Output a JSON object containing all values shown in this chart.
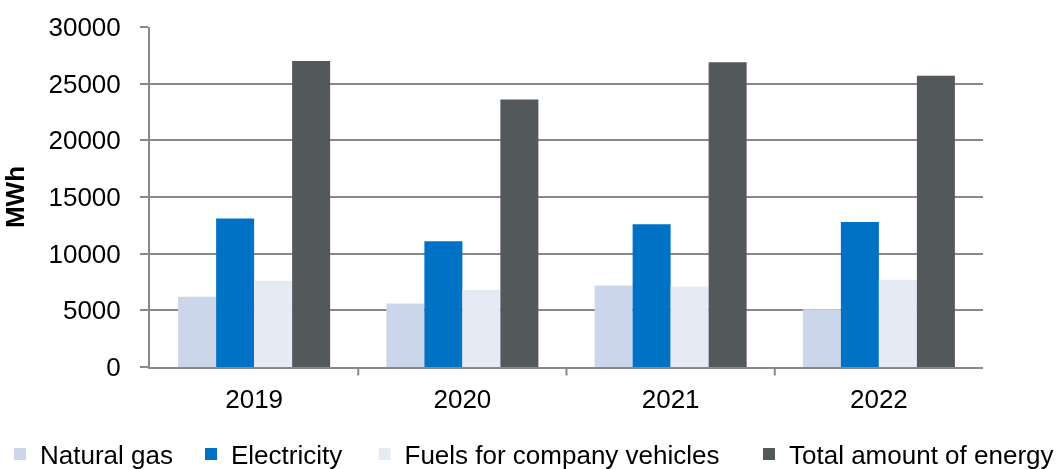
{
  "chart_data": {
    "type": "bar",
    "ylabel": "MWh",
    "categories": [
      "2019",
      "2020",
      "2021",
      "2022"
    ],
    "series": [
      {
        "name": "Natural gas",
        "color": "#cbd6ea",
        "values": [
          6200,
          5600,
          7200,
          5100
        ]
      },
      {
        "name": "Electricity",
        "color": "#0072c6",
        "values": [
          13100,
          11100,
          12600,
          12800
        ]
      },
      {
        "name": "Fuels for company vehicles",
        "color": "#e6eaf4",
        "values": [
          7600,
          6800,
          7100,
          7700
        ]
      },
      {
        "name": "Total amount of energy",
        "color": "#53585a",
        "values": [
          27000,
          23600,
          26900,
          25700
        ]
      }
    ],
    "ylim": [
      0,
      30000
    ],
    "yticks": [
      0,
      5000,
      10000,
      15000,
      20000,
      25000,
      30000
    ],
    "grid": "y",
    "legend": "bottom"
  }
}
